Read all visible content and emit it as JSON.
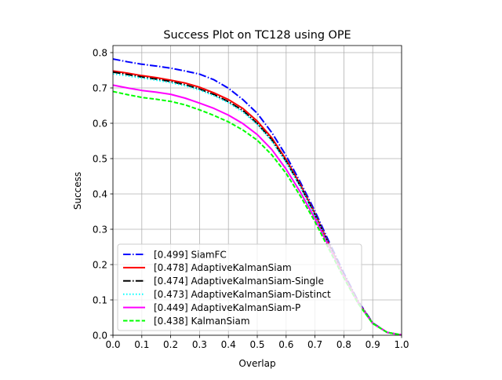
{
  "chart_data": {
    "type": "line",
    "title": "Success Plot on TC128 using OPE",
    "xlabel": "Overlap",
    "ylabel": "Success",
    "xlim": [
      0,
      1
    ],
    "ylim": [
      0,
      0.82
    ],
    "grid": true,
    "legend_position": "lower-left",
    "x_ticks": [
      "0.0",
      "0.1",
      "0.2",
      "0.3",
      "0.4",
      "0.5",
      "0.6",
      "0.7",
      "0.8",
      "0.9",
      "1.0"
    ],
    "y_ticks": [
      "0.0",
      "0.1",
      "0.2",
      "0.3",
      "0.4",
      "0.5",
      "0.6",
      "0.7",
      "0.8"
    ],
    "x": [
      0,
      0.05,
      0.1,
      0.15,
      0.2,
      0.25,
      0.3,
      0.35,
      0.4,
      0.45,
      0.5,
      0.55,
      0.6,
      0.65,
      0.7,
      0.75,
      0.8,
      0.85,
      0.9,
      0.95,
      1.0
    ],
    "series": [
      {
        "name": "[0.499] SiamFC",
        "color": "#0000ff",
        "dash": "dashdot",
        "values": [
          0.782,
          0.774,
          0.767,
          0.762,
          0.756,
          0.748,
          0.739,
          0.723,
          0.699,
          0.667,
          0.628,
          0.574,
          0.508,
          0.432,
          0.351,
          0.262,
          0.176,
          0.096,
          0.035,
          0.008,
          0.001
        ]
      },
      {
        "name": "[0.478] AdaptiveKalmanSiam",
        "color": "#ff0000",
        "dash": "solid",
        "values": [
          0.748,
          0.742,
          0.735,
          0.729,
          0.722,
          0.714,
          0.702,
          0.686,
          0.667,
          0.642,
          0.606,
          0.559,
          0.497,
          0.425,
          0.343,
          0.255,
          0.17,
          0.093,
          0.034,
          0.008,
          0.001
        ]
      },
      {
        "name": "[0.474] AdaptiveKalmanSiam-Single",
        "color": "#000000",
        "dash": "dashdot",
        "values": [
          0.745,
          0.738,
          0.731,
          0.725,
          0.718,
          0.709,
          0.697,
          0.681,
          0.661,
          0.636,
          0.599,
          0.553,
          0.492,
          0.421,
          0.341,
          0.253,
          0.169,
          0.092,
          0.034,
          0.008,
          0.001
        ]
      },
      {
        "name": "[0.473] AdaptiveKalmanSiam-Distinct",
        "color": "#00ffff",
        "dash": "dotted",
        "values": [
          0.74,
          0.734,
          0.728,
          0.722,
          0.715,
          0.706,
          0.694,
          0.678,
          0.658,
          0.632,
          0.597,
          0.55,
          0.49,
          0.419,
          0.339,
          0.252,
          0.168,
          0.092,
          0.034,
          0.008,
          0.001
        ]
      },
      {
        "name": "[0.449] AdaptiveKalmanSiam-P",
        "color": "#ff00ff",
        "dash": "solid",
        "values": [
          0.708,
          0.7,
          0.693,
          0.688,
          0.682,
          0.671,
          0.657,
          0.642,
          0.623,
          0.599,
          0.568,
          0.526,
          0.47,
          0.404,
          0.33,
          0.248,
          0.166,
          0.091,
          0.033,
          0.008,
          0.001
        ]
      },
      {
        "name": "[0.438] KalmanSiam",
        "color": "#00ff00",
        "dash": "dashed",
        "values": [
          0.69,
          0.681,
          0.673,
          0.668,
          0.662,
          0.652,
          0.638,
          0.622,
          0.604,
          0.581,
          0.552,
          0.511,
          0.458,
          0.393,
          0.321,
          0.241,
          0.162,
          0.089,
          0.033,
          0.008,
          0.001
        ]
      }
    ]
  }
}
